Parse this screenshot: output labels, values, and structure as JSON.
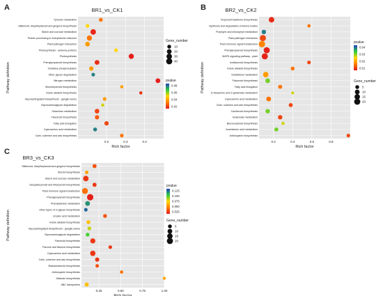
{
  "panels": [
    {
      "letter": "A"
    },
    {
      "letter": "B"
    },
    {
      "letter": "C"
    }
  ],
  "colors": {
    "plot_bg": "#e6e6e6",
    "grid": "#ffffff",
    "gradient": [
      "#e31a1c",
      "#ff7f00",
      "#ffd700",
      "#2ecc40",
      "#1f3fbf"
    ]
  },
  "chart_data": [
    {
      "type": "scatter",
      "title": "BR1_vs_CK1",
      "xlabel": "Rich factor",
      "ylabel": "Pathway definition",
      "xlim": [
        0.05,
        0.5
      ],
      "xticks": [
        "0.2",
        "0.3",
        "0.4"
      ],
      "xtick_values": [
        0.2,
        0.3,
        0.4
      ],
      "color_legend": {
        "title": "pvalue",
        "ticks": [
          "0.08",
          "0.06",
          "0.04",
          "0.02"
        ],
        "max": 0.09
      },
      "size_legend": {
        "title": "Gene_number",
        "labels": [
          "10",
          "20",
          "30",
          "40"
        ],
        "values": [
          10,
          20,
          30,
          40
        ]
      },
      "points": [
        {
          "pathway": "Tyrosine metabolism",
          "x": 0.17,
          "gene_number": 10,
          "pvalue": 0.02
        },
        {
          "pathway": "Stilbenoid, diarylheptanoid and gingerol biosynthesis",
          "x": 0.1,
          "gene_number": 8,
          "pvalue": 0.045
        },
        {
          "pathway": "Starch and sucrose metabolism",
          "x": 0.13,
          "gene_number": 30,
          "pvalue": 0.003
        },
        {
          "pathway": "Protein processing in endoplasmic reticulum",
          "x": 0.11,
          "gene_number": 25,
          "pvalue": 0.02
        },
        {
          "pathway": "Plant-pathogen interaction",
          "x": 0.1,
          "gene_number": 20,
          "pvalue": 0.03
        },
        {
          "pathway": "Photosynthesis - antenna proteins",
          "x": 0.25,
          "gene_number": 8,
          "pvalue": 0.045
        },
        {
          "pathway": "Photosynthesis",
          "x": 0.33,
          "gene_number": 25,
          "pvalue": 0.001
        },
        {
          "pathway": "Phenylpropanoid biosynthesis",
          "x": 0.15,
          "gene_number": 20,
          "pvalue": 0.005
        },
        {
          "pathway": "Oxidative phosphorylation",
          "x": 0.12,
          "gene_number": 15,
          "pvalue": 0.03
        },
        {
          "pathway": "Other glycan degradation",
          "x": 0.13,
          "gene_number": 8,
          "pvalue": 0.08
        },
        {
          "pathway": "Nitrogen metabolism",
          "x": 0.47,
          "gene_number": 20,
          "pvalue": 0.001
        },
        {
          "pathway": "Monoterpenoid biosynthesis",
          "x": 0.28,
          "gene_number": 5,
          "pvalue": 0.03
        },
        {
          "pathway": "Indole alkaloid biosynthesis",
          "x": 0.38,
          "gene_number": 5,
          "pvalue": 0.005
        },
        {
          "pathway": "Glycosphingolipid biosynthesis - ganglio series",
          "x": 0.19,
          "gene_number": 8,
          "pvalue": 0.03
        },
        {
          "pathway": "Glycosaminoglycan degradation",
          "x": 0.18,
          "gene_number": 6,
          "pvalue": 0.05
        },
        {
          "pathway": "Galactose metabolism",
          "x": 0.15,
          "gene_number": 18,
          "pvalue": 0.01
        },
        {
          "pathway": "Flavonoid biosynthesis",
          "x": 0.15,
          "gene_number": 15,
          "pvalue": 0.015
        },
        {
          "pathway": "Fatty acid elongation",
          "x": 0.2,
          "gene_number": 15,
          "pvalue": 0.01
        },
        {
          "pathway": "Cyanoamino acid metabolism",
          "x": 0.14,
          "gene_number": 10,
          "pvalue": 0.08
        },
        {
          "pathway": "Cutin, suberine and wax biosynthesis",
          "x": 0.28,
          "gene_number": 8,
          "pvalue": 0.02
        }
      ]
    },
    {
      "type": "scatter",
      "title": "BR2_vs_CK2",
      "xlabel": "Rich factor",
      "ylabel": "Pathway definition",
      "xlim": [
        0.05,
        1.0
      ],
      "xticks": [
        "0.2",
        "0.4",
        "0.6",
        "0.8"
      ],
      "xtick_values": [
        0.2,
        0.4,
        0.6,
        0.8
      ],
      "color_legend": {
        "title": "pvalue",
        "ticks": [
          "0.04",
          "0.03",
          "0.02",
          "0.01"
        ],
        "max": 0.045
      },
      "size_legend": {
        "title": "Gene_number",
        "labels": [
          "5",
          "10",
          "15",
          "20"
        ],
        "values": [
          5,
          10,
          15,
          20
        ]
      },
      "points": [
        {
          "pathway": "Terpenoid backbone biosynthesis",
          "x": 0.18,
          "gene_number": 15,
          "pvalue": 0.002
        },
        {
          "pathway": "Synthesis and degradation of ketone bodies",
          "x": 0.57,
          "gene_number": 3,
          "pvalue": 0.01
        },
        {
          "pathway": "Porphyrin and chlorophyll metabolism",
          "x": 0.1,
          "gene_number": 8,
          "pvalue": 0.04
        },
        {
          "pathway": "Plant-pathogen interaction",
          "x": 0.09,
          "gene_number": 20,
          "pvalue": 0.005
        },
        {
          "pathway": "Plant hormone signal transduction",
          "x": 0.08,
          "gene_number": 22,
          "pvalue": 0.012
        },
        {
          "pathway": "Phenylpropanoid biosynthesis",
          "x": 0.13,
          "gene_number": 20,
          "pvalue": 0.001
        },
        {
          "pathway": "MAPK signaling pathway - plant",
          "x": 0.11,
          "gene_number": 20,
          "pvalue": 0.001
        },
        {
          "pathway": "Isoflavonoid biosynthesis",
          "x": 0.57,
          "gene_number": 4,
          "pvalue": 0.005
        },
        {
          "pathway": "Indole alkaloid biosynthesis",
          "x": 0.4,
          "gene_number": 5,
          "pvalue": 0.01
        },
        {
          "pathway": "Glutathione metabolism",
          "x": 0.12,
          "gene_number": 15,
          "pvalue": 0.015
        },
        {
          "pathway": "Flavonoid biosynthesis",
          "x": 0.14,
          "gene_number": 10,
          "pvalue": 0.03
        },
        {
          "pathway": "Fatty acid elongation",
          "x": 0.27,
          "gene_number": 6,
          "pvalue": 0.01
        },
        {
          "pathway": "D-Glutamine and D-glutamate metabolism",
          "x": 0.4,
          "gene_number": 2,
          "pvalue": 0.025
        },
        {
          "pathway": "Cyanoamino acid metabolism",
          "x": 0.15,
          "gene_number": 10,
          "pvalue": 0.01
        },
        {
          "pathway": "Cutin, suberine and wax biosynthesis",
          "x": 0.38,
          "gene_number": 6,
          "pvalue": 0.005
        },
        {
          "pathway": "Carotenoid biosynthesis",
          "x": 0.14,
          "gene_number": 8,
          "pvalue": 0.03
        },
        {
          "pathway": "Butanoate metabolism",
          "x": 0.27,
          "gene_number": 8,
          "pvalue": 0.005
        },
        {
          "pathway": "Benzoxazinoid biosynthesis",
          "x": 0.3,
          "gene_number": 3,
          "pvalue": 0.025
        },
        {
          "pathway": "Arachidonic acid metabolism",
          "x": 0.23,
          "gene_number": 6,
          "pvalue": 0.03
        },
        {
          "pathway": "Anthocyanin biosynthesis",
          "x": 0.98,
          "gene_number": 4,
          "pvalue": 0.005
        }
      ]
    },
    {
      "type": "scatter",
      "title": "BR3_vs_CK3",
      "xlabel": "Rich factor",
      "ylabel": "Pathway definition",
      "xlim": [
        0.05,
        1.0
      ],
      "xticks": [
        "0.25",
        "0.50",
        "0.75",
        "1.00"
      ],
      "xtick_values": [
        0.25,
        0.5,
        0.75,
        1.0
      ],
      "color_legend": {
        "title": "pvalue",
        "ticks": [
          "0.125",
          "0.100",
          "0.075",
          "0.050",
          "0.025"
        ],
        "max": 0.14
      },
      "size_legend": {
        "title": "Gene_number",
        "labels": [
          "5",
          "10",
          "15",
          "20"
        ],
        "values": [
          5,
          10,
          15,
          20
        ]
      },
      "points": [
        {
          "pathway": "Stilbenoid, diarylheptanoid and gingerol biosynthesis",
          "x": 0.2,
          "gene_number": 6,
          "pvalue": 0.02
        },
        {
          "pathway": "Steroid biosynthesis",
          "x": 0.11,
          "gene_number": 4,
          "pvalue": 0.05
        },
        {
          "pathway": "Starch and sucrose metabolism",
          "x": 0.1,
          "gene_number": 15,
          "pvalue": 0.01
        },
        {
          "pathway": "Sesquiterpenoid and triterpenoid biosynthesis",
          "x": 0.2,
          "gene_number": 6,
          "pvalue": 0.01
        },
        {
          "pathway": "Plant hormone signal transduction",
          "x": 0.09,
          "gene_number": 18,
          "pvalue": 0.03
        },
        {
          "pathway": "Phenylpropanoid biosynthesis",
          "x": 0.15,
          "gene_number": 22,
          "pvalue": 0.002
        },
        {
          "pathway": "Phenylalanine metabolism",
          "x": 0.12,
          "gene_number": 10,
          "pvalue": 0.12
        },
        {
          "pathway": "Other types of O-glycan biosynthesis",
          "x": 0.1,
          "gene_number": 4,
          "pvalue": 0.13
        },
        {
          "pathway": "Linoleic acid metabolism",
          "x": 0.32,
          "gene_number": 5,
          "pvalue": 0.02
        },
        {
          "pathway": "Indole alkaloid biosynthesis",
          "x": 0.13,
          "gene_number": 5,
          "pvalue": 0.06
        },
        {
          "pathway": "Glycosphingolipid biosynthesis - ganglio series",
          "x": 0.14,
          "gene_number": 5,
          "pvalue": 0.08
        },
        {
          "pathway": "Glycosaminoglycan degradation",
          "x": 0.12,
          "gene_number": 5,
          "pvalue": 0.1
        },
        {
          "pathway": "Flavonoid biosynthesis",
          "x": 0.18,
          "gene_number": 12,
          "pvalue": 0.01
        },
        {
          "pathway": "Flavone and flavonol biosynthesis",
          "x": 0.38,
          "gene_number": 4,
          "pvalue": 0.01
        },
        {
          "pathway": "Cyanoamino acid metabolism",
          "x": 0.18,
          "gene_number": 14,
          "pvalue": 0.01
        },
        {
          "pathway": "Cutin, suberine and wax biosynthesis",
          "x": 0.23,
          "gene_number": 7,
          "pvalue": 0.01
        },
        {
          "pathway": "Brassinosteroid biosynthesis",
          "x": 0.23,
          "gene_number": 4,
          "pvalue": 0.02
        },
        {
          "pathway": "Anthocyanin biosynthesis",
          "x": 0.51,
          "gene_number": 3,
          "pvalue": 0.03
        },
        {
          "pathway": "Aflatoxin biosynthesis",
          "x": 1.0,
          "gene_number": 2,
          "pvalue": 0.05
        },
        {
          "pathway": "ABC transporters",
          "x": 0.11,
          "gene_number": 6,
          "pvalue": 0.06
        }
      ]
    }
  ]
}
